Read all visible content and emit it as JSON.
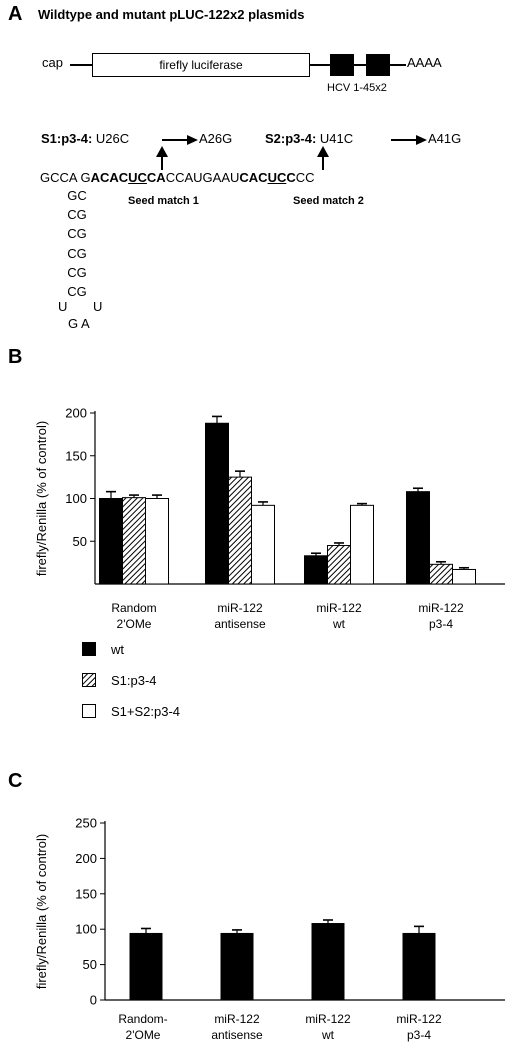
{
  "panel_a": {
    "letter": "A",
    "title": "Wildtype and mutant pLUC-122x2 plasmids",
    "cap": "cap",
    "gene": "firefly luciferase",
    "polya": "AAAA",
    "hcv": "HCV 1-45x2",
    "s1_label": "S1:p3-4:",
    "s1_from": "U26C",
    "s1_to": "A26G",
    "s2_label": "S2:p3-4:",
    "s2_from": "U41C",
    "s2_to": "A41G",
    "seq": {
      "p1": "GCCA G",
      "p2": "ACAC",
      "p3": "UC",
      "p4": "CA",
      "p5": "CCAUGAAU",
      "p6": "CAC",
      "p7": "UC",
      "p8": "C",
      "p9": "CC"
    },
    "stem": [
      "GC",
      "CG",
      "CG",
      "CG",
      "CG",
      "CG"
    ],
    "loop_u_left": "U",
    "loop_u_right": "U",
    "loop_bottom": "G A",
    "seed1": "Seed match 1",
    "seed2": "Seed match 2"
  },
  "panel_b": {
    "letter": "B",
    "legend": [
      {
        "name": "wt",
        "style": "solid"
      },
      {
        "name": "S1:p3-4",
        "style": "hatched"
      },
      {
        "name": "S1+S2:p3-4",
        "style": "open"
      }
    ]
  },
  "panel_c": {
    "letter": "C"
  },
  "chart_data": [
    {
      "type": "bar",
      "ylabel": "firefly/Renilla (% of control)",
      "ylim": [
        0,
        200
      ],
      "yticks": [
        "200",
        "150",
        "100",
        "50"
      ],
      "categories": [
        "Random\n2'OMe",
        "miR-122\nantisense",
        "miR-122\nwt",
        "miR-122\np3-4"
      ],
      "category_lines": [
        [
          "Random",
          "2'OMe"
        ],
        [
          "miR-122",
          "antisense"
        ],
        [
          "miR-122",
          "wt"
        ],
        [
          "miR-122",
          "p3-4"
        ]
      ],
      "series": [
        {
          "name": "wt",
          "values": [
            100,
            188,
            33,
            108
          ],
          "errors": [
            8,
            8,
            3,
            4
          ],
          "color": "#000000"
        },
        {
          "name": "S1:p3-4",
          "values": [
            101,
            125,
            45,
            23
          ],
          "errors": [
            3,
            7,
            3,
            3
          ],
          "color": "hatched"
        },
        {
          "name": "S1+S2:p3-4",
          "values": [
            100,
            92,
            92,
            17
          ],
          "errors": [
            4,
            4,
            2,
            2
          ],
          "color": "#ffffff"
        }
      ]
    },
    {
      "type": "bar",
      "ylabel": "firefly/Renilla (% of control)",
      "ylim": [
        0,
        250
      ],
      "yticks": [
        "250",
        "200",
        "150",
        "100",
        "50",
        "0"
      ],
      "categories": [
        "Random-\n2'OMe",
        "miR-122\nantisense",
        "miR-122\nwt",
        "miR-122\np3-4"
      ],
      "category_lines": [
        [
          "Random-",
          "2'OMe"
        ],
        [
          "miR-122",
          "antisense"
        ],
        [
          "miR-122",
          "wt"
        ],
        [
          "miR-122",
          "p3-4"
        ]
      ],
      "series": [
        {
          "name": "",
          "values": [
            94,
            94,
            108,
            94
          ],
          "errors": [
            7,
            5,
            5,
            10
          ],
          "color": "#000000"
        }
      ]
    }
  ]
}
